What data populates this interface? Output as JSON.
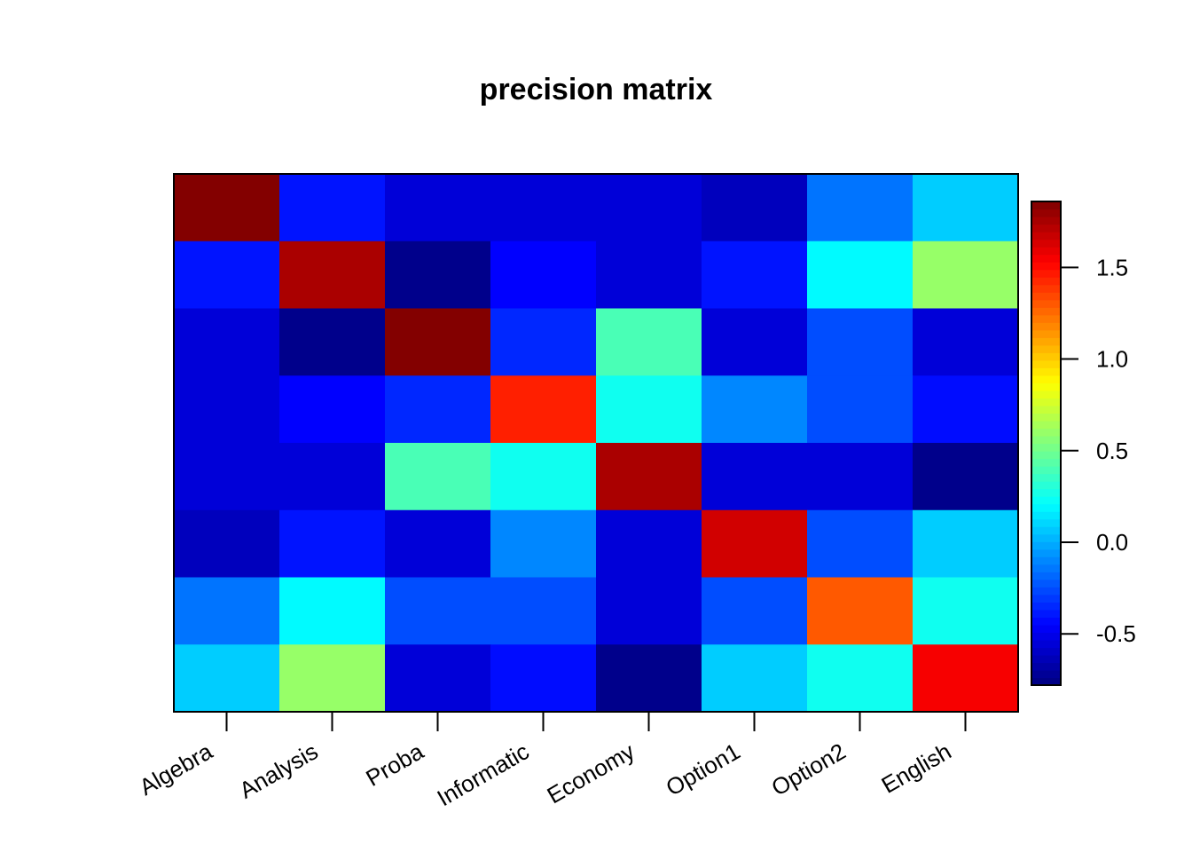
{
  "chart_data": {
    "type": "heatmap",
    "title": "precision matrix",
    "xlabel": "",
    "ylabel": "",
    "categories": [
      "Algebra",
      "Analysis",
      "Proba",
      "Informatic",
      "Economy",
      "Option1",
      "Option2",
      "English"
    ],
    "values": [
      [
        1.85,
        -0.4,
        -0.55,
        -0.55,
        -0.55,
        -0.62,
        -0.15,
        0.08
      ],
      [
        -0.4,
        1.75,
        -0.75,
        -0.45,
        -0.55,
        -0.4,
        0.2,
        0.6
      ],
      [
        -0.55,
        -0.75,
        1.85,
        -0.35,
        0.4,
        -0.55,
        -0.25,
        -0.55
      ],
      [
        -0.55,
        -0.45,
        -0.35,
        1.45,
        0.25,
        -0.1,
        -0.25,
        -0.42
      ],
      [
        -0.55,
        -0.55,
        0.4,
        0.25,
        1.75,
        -0.55,
        -0.55,
        -0.75
      ],
      [
        -0.62,
        -0.4,
        -0.55,
        -0.1,
        -0.55,
        1.65,
        -0.25,
        0.08
      ],
      [
        -0.15,
        0.2,
        -0.25,
        -0.25,
        -0.55,
        -0.25,
        1.3,
        0.25
      ],
      [
        0.08,
        0.6,
        -0.55,
        -0.42,
        -0.75,
        0.08,
        0.25,
        1.55
      ]
    ],
    "colorbar": {
      "min": -0.78,
      "max": 1.86,
      "ticks": [
        -0.5,
        0.0,
        0.5,
        1.0,
        1.5
      ],
      "tick_labels": [
        "-0.5",
        "0.0",
        "0.5",
        "1.0",
        "1.5"
      ],
      "colormap": "jet"
    },
    "grid": false,
    "legend_position": "right"
  }
}
